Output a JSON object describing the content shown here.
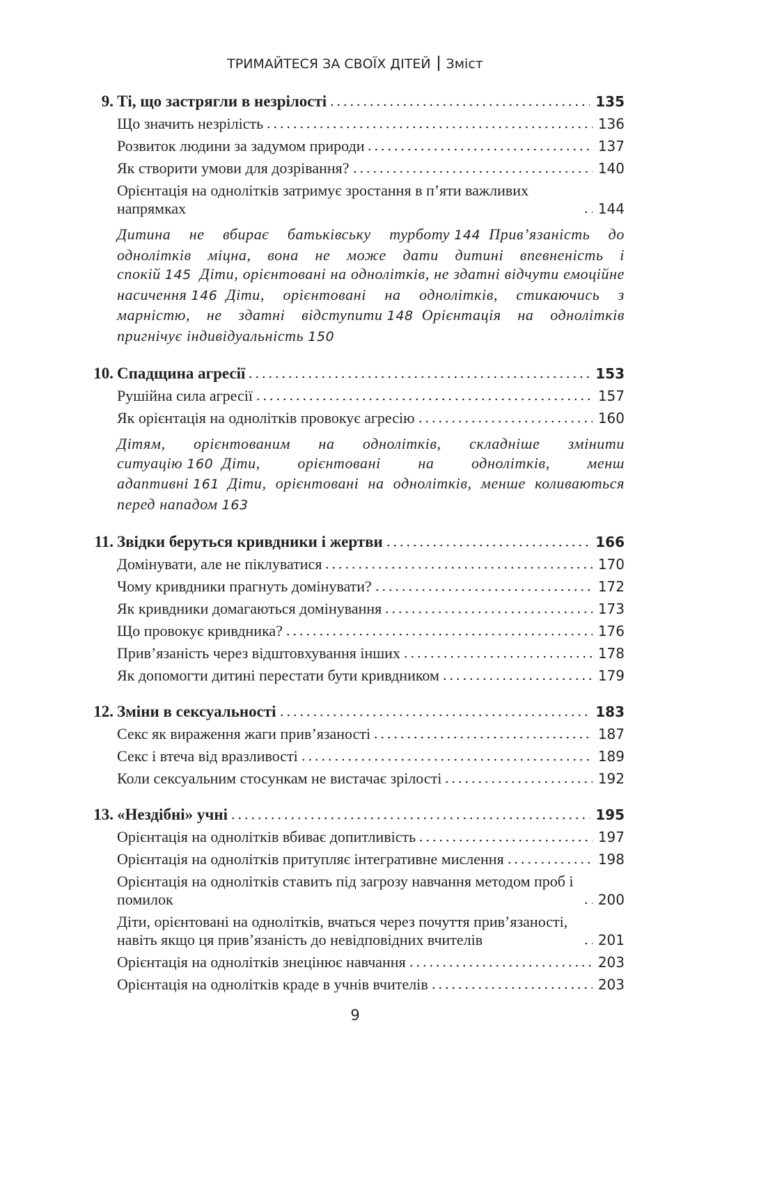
{
  "header": {
    "title": "ТРИМАЙТЕСЯ ЗА СВОЇХ ДІТЕЙ",
    "section": "Зміст"
  },
  "chapters": [
    {
      "number": "9.",
      "title": "Ті, що застрягли в незрілості",
      "page": 135,
      "sections": [
        {
          "title": "Що значить незрілість",
          "page": 136
        },
        {
          "title": "Розвиток людини за задумом природи",
          "page": 137
        },
        {
          "title": "Як створити умови для дозрівання?",
          "page": 140
        },
        {
          "title": "Орієнтація на однолітків затримує зростання в п’яти важливих напрямках",
          "page": 144
        }
      ],
      "topics": [
        {
          "title": "Дитина не вбирає батьківську турботу",
          "page": 144
        },
        {
          "title": "Прив’язаність до однолітків міцна, вона не може дати дитині впевненість і спокій",
          "page": 145
        },
        {
          "title": "Діти, орієнтовані на однолітків, не здатні відчути емоційне насичення",
          "page": 146
        },
        {
          "title": "Діти, орієнтовані на однолітків, стикаючись з марністю, не здатні відступити",
          "page": 148
        },
        {
          "title": "Орієнтація на однолітків пригнічує індивідуальність",
          "page": 150
        }
      ]
    },
    {
      "number": "10.",
      "title": "Спадщина агресії",
      "page": 153,
      "sections": [
        {
          "title": "Рушійна сила агресії",
          "page": 157
        },
        {
          "title": "Як орієнтація на однолітків провокує агресію",
          "page": 160
        }
      ],
      "topics": [
        {
          "title": "Дітям, орієнтованим на однолітків, складніше змінити ситуацію",
          "page": 160
        },
        {
          "title": "Діти, орієнтовані на однолітків, менш адаптивні",
          "page": 161
        },
        {
          "title": "Діти, орієнтовані на однолітків, менше коливаються перед нападом",
          "page": 163
        }
      ]
    },
    {
      "number": "11.",
      "title": "Звідки беруться кривдники і жертви",
      "page": 166,
      "sections": [
        {
          "title": "Домінувати, але не піклуватися",
          "page": 170
        },
        {
          "title": "Чому кривдники прагнуть домінувати?",
          "page": 172
        },
        {
          "title": "Як кривдники домагаються домінування",
          "page": 173
        },
        {
          "title": "Що провокує кривдника?",
          "page": 176
        },
        {
          "title": "Прив’язаність через відштовхування інших",
          "page": 178
        },
        {
          "title": "Як допомогти дитині перестати бути кривдником",
          "page": 179
        }
      ]
    },
    {
      "number": "12.",
      "title": "Зміни в сексуальності",
      "page": 183,
      "sections": [
        {
          "title": "Секс як вираження жаги прив’язаності",
          "page": 187
        },
        {
          "title": "Секс і втеча від вразливості",
          "page": 189
        },
        {
          "title": "Коли сексуальним стосункам не вистачає зрілості",
          "page": 192
        }
      ]
    },
    {
      "number": "13.",
      "title": "«Нездібні» учні",
      "page": 195,
      "sections": [
        {
          "title": "Орієнтація на однолітків вбиває допитливість",
          "page": 197
        },
        {
          "title": "Орієнтація на однолітків притупляє інтегративне мислення",
          "page": 198
        },
        {
          "title": "Орієнтація на однолітків ставить під загрозу навчання методом проб і помилок",
          "page": 200
        },
        {
          "title": "Діти, орієнтовані на однолітків, вчаться через почуття прив’язаності, навіть якщо ця прив’язаність до невідповідних вчителів",
          "page": 201
        },
        {
          "title": "Орієнтація на однолітків знецінює навчання",
          "page": 203
        },
        {
          "title": "Орієнтація на однолітків краде в учнів вчителів",
          "page": 203
        }
      ]
    }
  ],
  "page_number": 9
}
